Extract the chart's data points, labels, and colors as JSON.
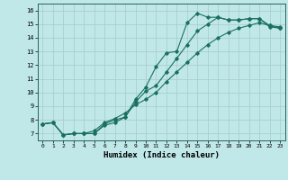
{
  "title": "",
  "xlabel": "Humidex (Indice chaleur)",
  "ylabel": "",
  "background_color": "#c0e8e8",
  "grid_color": "#aacece",
  "line_color": "#1a7060",
  "xlim": [
    -0.5,
    23.5
  ],
  "ylim": [
    6.5,
    16.5
  ],
  "xticks": [
    0,
    1,
    2,
    3,
    4,
    5,
    6,
    7,
    8,
    9,
    10,
    11,
    12,
    13,
    14,
    15,
    16,
    17,
    18,
    19,
    20,
    21,
    22,
    23
  ],
  "yticks": [
    7,
    8,
    9,
    10,
    11,
    12,
    13,
    14,
    15,
    16
  ],
  "line1_x": [
    0,
    1,
    2,
    3,
    4,
    5,
    6,
    7,
    8,
    9,
    10,
    11,
    12,
    13,
    14,
    15,
    16,
    17,
    18,
    19,
    20,
    21,
    22,
    23
  ],
  "line1_y": [
    7.7,
    7.8,
    6.9,
    7.0,
    7.0,
    7.0,
    7.7,
    8.0,
    8.2,
    9.5,
    10.4,
    11.9,
    12.9,
    13.0,
    15.1,
    15.8,
    15.5,
    15.5,
    15.3,
    15.3,
    15.4,
    15.4,
    14.8,
    14.7
  ],
  "line2_x": [
    0,
    1,
    2,
    3,
    4,
    5,
    6,
    7,
    8,
    9,
    10,
    11,
    12,
    13,
    14,
    15,
    16,
    17,
    18,
    19,
    20,
    21,
    22,
    23
  ],
  "line2_y": [
    7.7,
    7.8,
    6.9,
    7.0,
    7.0,
    7.0,
    7.6,
    7.8,
    8.2,
    9.3,
    10.1,
    10.5,
    11.5,
    12.5,
    13.5,
    14.5,
    15.0,
    15.5,
    15.3,
    15.3,
    15.4,
    15.4,
    14.9,
    14.8
  ],
  "line3_x": [
    0,
    1,
    2,
    3,
    4,
    5,
    6,
    7,
    8,
    9,
    10,
    11,
    12,
    13,
    14,
    15,
    16,
    17,
    18,
    19,
    20,
    21,
    22,
    23
  ],
  "line3_y": [
    7.7,
    7.8,
    6.9,
    7.0,
    7.0,
    7.2,
    7.8,
    8.1,
    8.5,
    9.1,
    9.5,
    10.0,
    10.8,
    11.5,
    12.2,
    12.9,
    13.5,
    14.0,
    14.4,
    14.7,
    14.9,
    15.1,
    14.9,
    14.7
  ]
}
